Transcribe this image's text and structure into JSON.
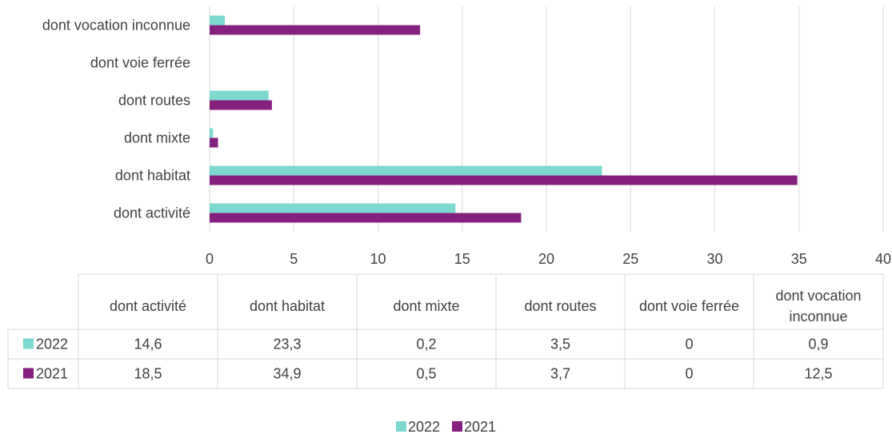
{
  "colors": {
    "series_2022": "#7dd8d0",
    "series_2021": "#86207e",
    "grid": "#d9d9d9",
    "text": "#404040"
  },
  "chart_data": {
    "type": "bar",
    "orientation": "horizontal",
    "categories": [
      "dont activité",
      "dont habitat",
      "dont mixte",
      "dont routes",
      "dont voie ferrée",
      "dont vocation inconnue"
    ],
    "table_headers": [
      "dont activité",
      "dont habitat",
      "dont mixte",
      "dont routes",
      "dont voie ferrée",
      "dont vocation inconnue"
    ],
    "series": [
      {
        "name": "2022",
        "values": [
          14.6,
          23.3,
          0.2,
          3.5,
          0,
          0.9
        ],
        "display": [
          "14,6",
          "23,3",
          "0,2",
          "3,5",
          "0",
          "0,9"
        ]
      },
      {
        "name": "2021",
        "values": [
          18.5,
          34.9,
          0.5,
          3.7,
          0,
          12.5
        ],
        "display": [
          "18,5",
          "34,9",
          "0,5",
          "3,7",
          "0",
          "12,5"
        ]
      }
    ],
    "xlim": [
      0,
      40
    ],
    "ticks": [
      0,
      5,
      10,
      15,
      20,
      25,
      30,
      35,
      40
    ],
    "grid": true,
    "legend": "bottom",
    "data_table": true
  }
}
